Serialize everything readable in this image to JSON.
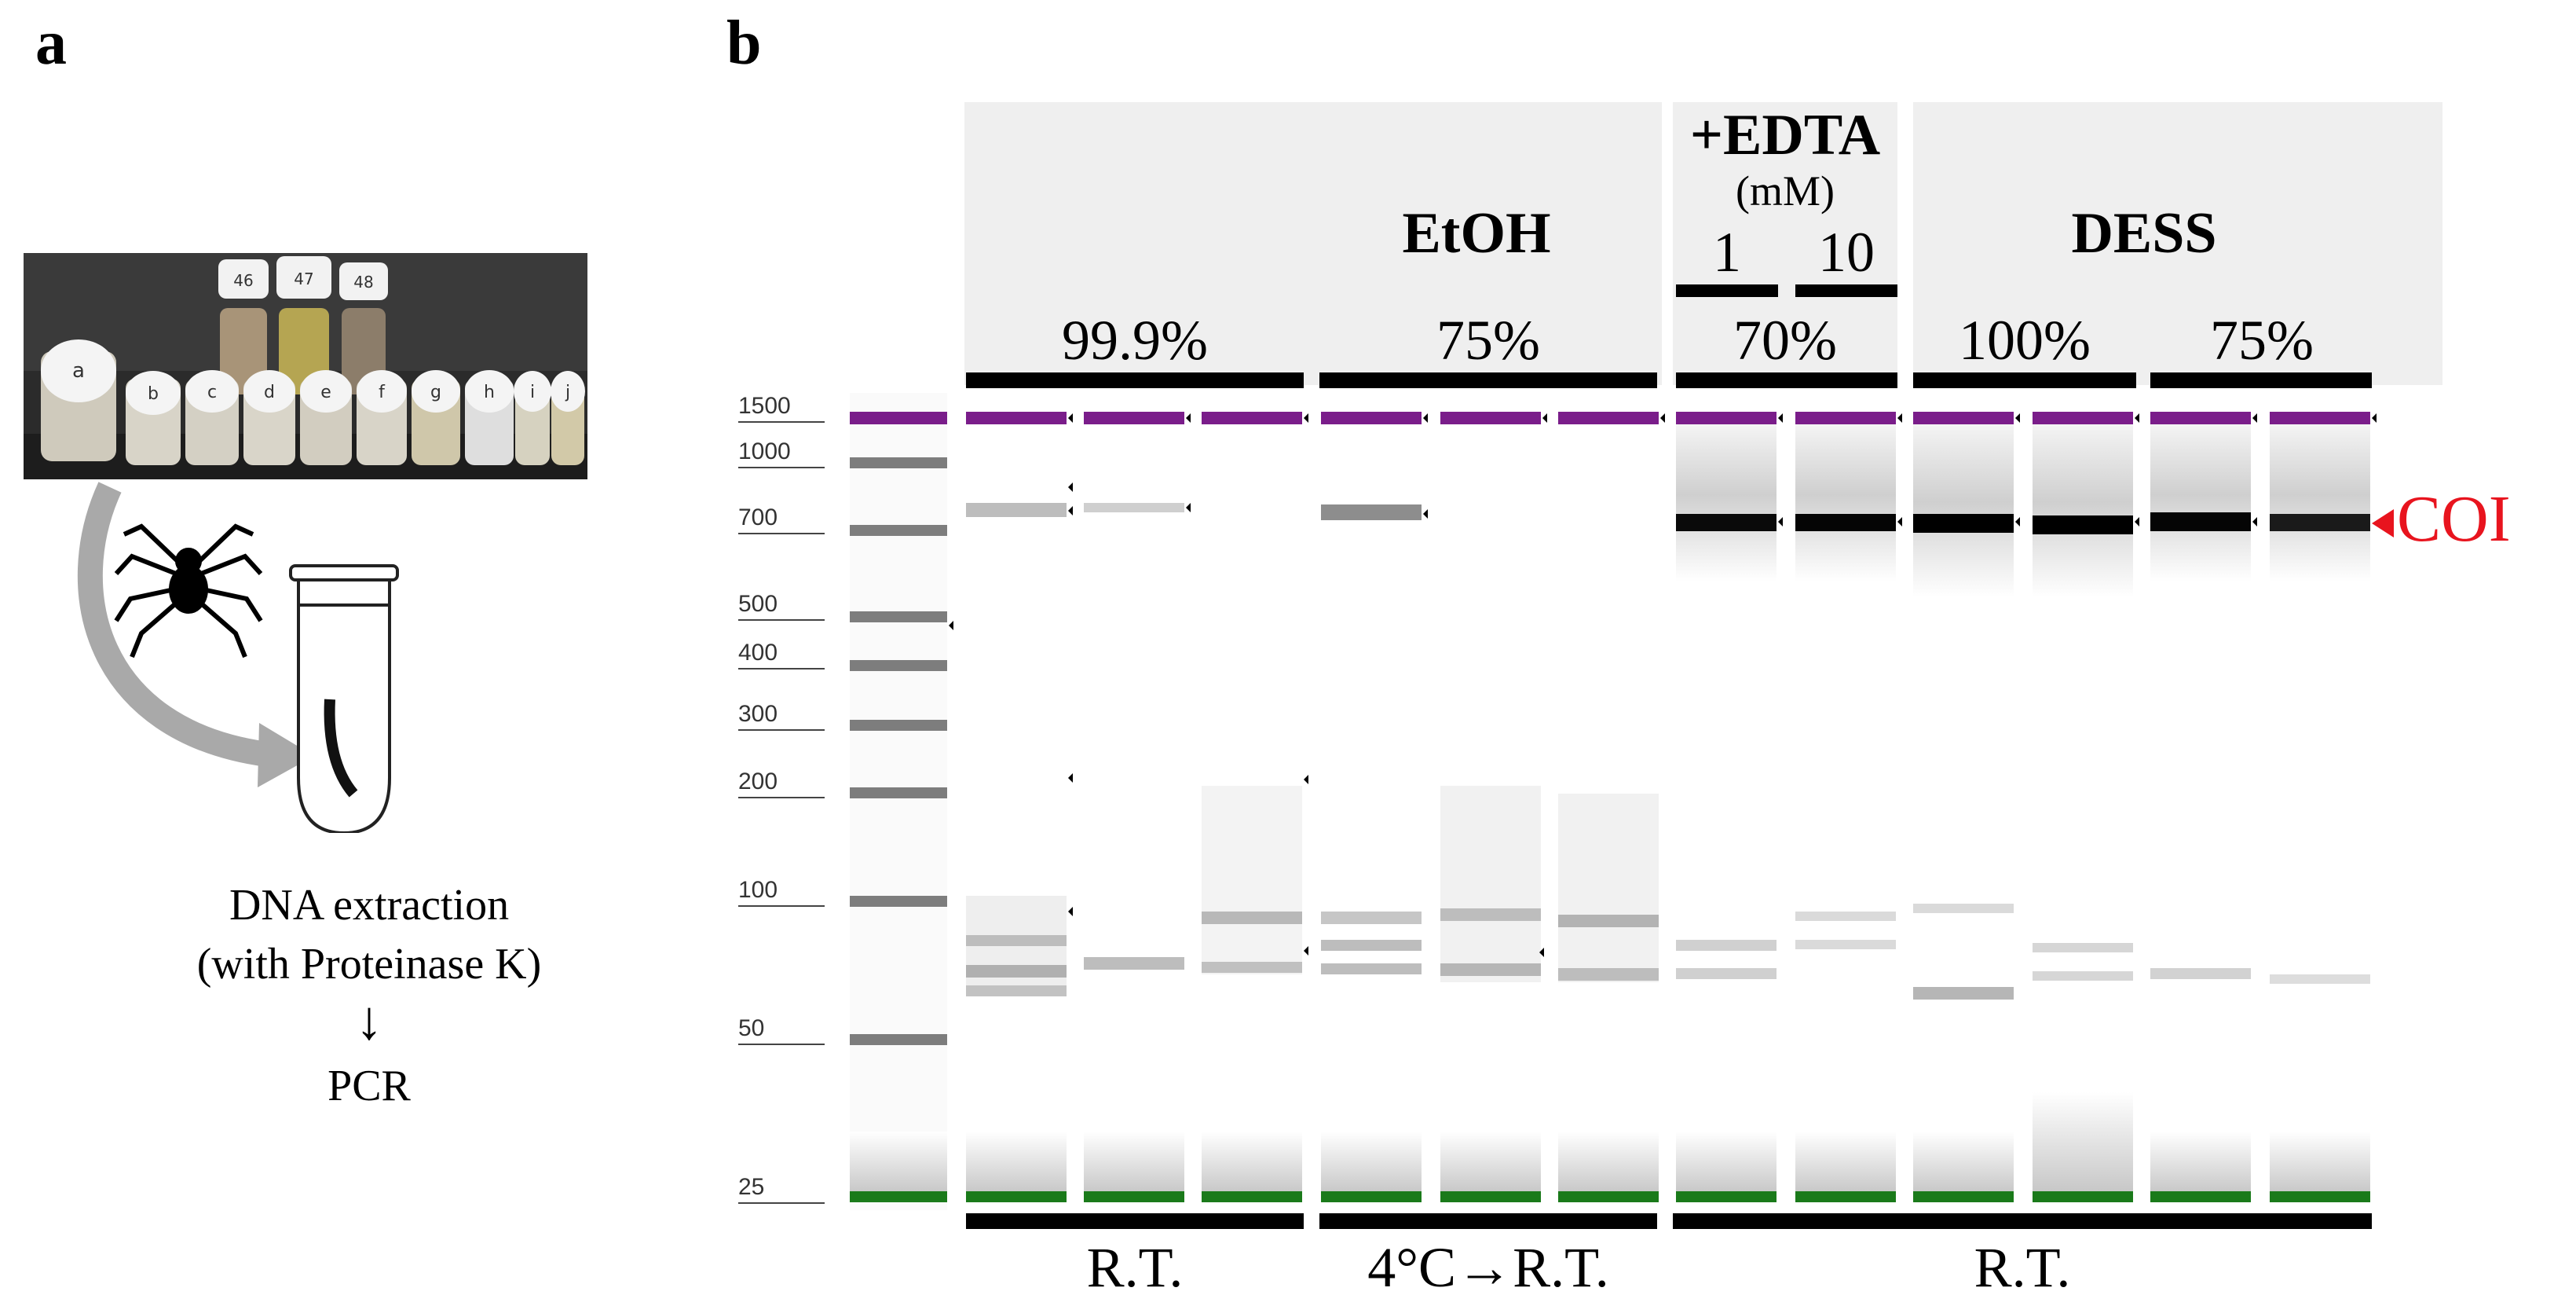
{
  "panel_a": {
    "letter": "a",
    "vial_labels": [
      "a",
      "b",
      "c",
      "d",
      "e",
      "f",
      "g",
      "h",
      "i",
      "j",
      "46",
      "47",
      "48"
    ],
    "caption_line1": "DNA extraction",
    "caption_line2": "(with Proteinase K)",
    "arrow": "↓",
    "caption_line3": "PCR"
  },
  "panel_b": {
    "letter": "b",
    "ladder_labels": [
      "1500",
      "1000",
      "700",
      "500",
      "400",
      "300",
      "200",
      "100",
      "50",
      "25"
    ],
    "header": {
      "etoh": "EtOH",
      "edta": "+EDTA",
      "edta_unit": "(mM)",
      "edta_1": "1",
      "edta_10": "10",
      "dess": "DESS",
      "pct_999": "99.9%",
      "pct_75a": "75%",
      "pct_70": "70%",
      "pct_100": "100%",
      "pct_75b": "75%"
    },
    "coi_label": "COI",
    "footer": {
      "rt1": "R.T.",
      "cold": "4°C→R.T.",
      "rt2": "R.T."
    },
    "colors": {
      "upper_marker": "#7a1d8a",
      "lower_marker": "#1a7a1a",
      "coi": "#e8141e",
      "header_bg": "#efefef"
    }
  }
}
